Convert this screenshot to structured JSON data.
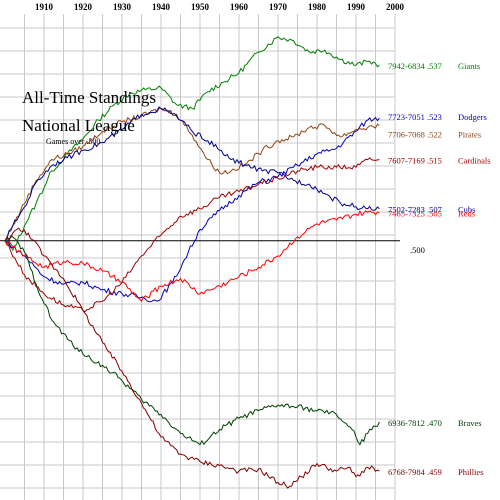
{
  "chart_data": {
    "type": "line",
    "title": "All-Time Standings",
    "subtitle": "National League",
    "note": "Games over .500",
    "baseline_label": ".500",
    "xlim": [
      1900,
      2000
    ],
    "ylim": [
      -660,
      590
    ],
    "x_ticks": [
      "1910",
      "1920",
      "1930",
      "1940",
      "1950",
      "1960",
      "1970",
      "1980",
      "1990",
      "2000"
    ],
    "x_tick_values": [
      1910,
      1920,
      1930,
      1940,
      1950,
      1960,
      1970,
      1980,
      1990,
      2000
    ],
    "grid": true,
    "series": [
      {
        "name": "Giants",
        "record": "7942-6834 .537",
        "color": "#008000",
        "points": [
          [
            1900,
            0
          ],
          [
            1902,
            -25
          ],
          [
            1905,
            40
          ],
          [
            1908,
            100
          ],
          [
            1912,
            185
          ],
          [
            1916,
            230
          ],
          [
            1920,
            270
          ],
          [
            1924,
            320
          ],
          [
            1928,
            360
          ],
          [
            1932,
            390
          ],
          [
            1936,
            400
          ],
          [
            1940,
            405
          ],
          [
            1944,
            360
          ],
          [
            1948,
            350
          ],
          [
            1952,
            395
          ],
          [
            1956,
            420
          ],
          [
            1960,
            445
          ],
          [
            1965,
            500
          ],
          [
            1970,
            540
          ],
          [
            1974,
            530
          ],
          [
            1978,
            500
          ],
          [
            1982,
            505
          ],
          [
            1986,
            480
          ],
          [
            1990,
            465
          ],
          [
            1993,
            475
          ],
          [
            1995,
            470
          ],
          [
            1996,
            465
          ]
        ]
      },
      {
        "name": "Dodgers",
        "record": "7723-7051 .523",
        "color": "#0000c0",
        "points": [
          [
            1900,
            0
          ],
          [
            1905,
            -40
          ],
          [
            1910,
            -95
          ],
          [
            1915,
            -115
          ],
          [
            1920,
            -110
          ],
          [
            1925,
            -130
          ],
          [
            1930,
            -140
          ],
          [
            1935,
            -150
          ],
          [
            1939,
            -160
          ],
          [
            1943,
            -110
          ],
          [
            1947,
            -30
          ],
          [
            1950,
            30
          ],
          [
            1955,
            80
          ],
          [
            1960,
            120
          ],
          [
            1965,
            155
          ],
          [
            1970,
            170
          ],
          [
            1975,
            200
          ],
          [
            1980,
            230
          ],
          [
            1985,
            245
          ],
          [
            1990,
            290
          ],
          [
            1993,
            320
          ],
          [
            1996,
            325
          ]
        ]
      },
      {
        "name": "Pirates",
        "record": "7706-7068 .522",
        "color": "#8b4513",
        "points": [
          [
            1900,
            0
          ],
          [
            1902,
            40
          ],
          [
            1904,
            80
          ],
          [
            1908,
            160
          ],
          [
            1912,
            215
          ],
          [
            1916,
            230
          ],
          [
            1920,
            250
          ],
          [
            1925,
            290
          ],
          [
            1930,
            315
          ],
          [
            1935,
            330
          ],
          [
            1940,
            350
          ],
          [
            1944,
            335
          ],
          [
            1948,
            280
          ],
          [
            1952,
            215
          ],
          [
            1955,
            180
          ],
          [
            1958,
            185
          ],
          [
            1962,
            205
          ],
          [
            1966,
            240
          ],
          [
            1970,
            265
          ],
          [
            1974,
            275
          ],
          [
            1978,
            300
          ],
          [
            1982,
            305
          ],
          [
            1986,
            275
          ],
          [
            1990,
            295
          ],
          [
            1993,
            300
          ],
          [
            1996,
            305
          ]
        ]
      },
      {
        "name": "Cardinals",
        "record": "7607-7169 .515",
        "color": "#a00000",
        "points": [
          [
            1900,
            0
          ],
          [
            1905,
            -90
          ],
          [
            1910,
            -140
          ],
          [
            1915,
            -170
          ],
          [
            1920,
            -185
          ],
          [
            1925,
            -160
          ],
          [
            1930,
            -110
          ],
          [
            1935,
            -40
          ],
          [
            1940,
            15
          ],
          [
            1945,
            65
          ],
          [
            1950,
            85
          ],
          [
            1955,
            115
          ],
          [
            1960,
            130
          ],
          [
            1965,
            150
          ],
          [
            1970,
            165
          ],
          [
            1975,
            185
          ],
          [
            1980,
            195
          ],
          [
            1985,
            195
          ],
          [
            1990,
            195
          ],
          [
            1993,
            215
          ],
          [
            1996,
            215
          ]
        ]
      },
      {
        "name": "Cubs",
        "record": "7502-7283 .507",
        "color": "#00008b",
        "points": [
          [
            1900,
            0
          ],
          [
            1902,
            40
          ],
          [
            1905,
            90
          ],
          [
            1908,
            155
          ],
          [
            1912,
            200
          ],
          [
            1916,
            220
          ],
          [
            1920,
            240
          ],
          [
            1925,
            260
          ],
          [
            1930,
            295
          ],
          [
            1935,
            335
          ],
          [
            1940,
            350
          ],
          [
            1944,
            330
          ],
          [
            1948,
            290
          ],
          [
            1952,
            265
          ],
          [
            1955,
            240
          ],
          [
            1958,
            215
          ],
          [
            1962,
            200
          ],
          [
            1966,
            185
          ],
          [
            1970,
            180
          ],
          [
            1974,
            160
          ],
          [
            1978,
            150
          ],
          [
            1982,
            125
          ],
          [
            1986,
            100
          ],
          [
            1990,
            90
          ],
          [
            1993,
            85
          ],
          [
            1996,
            85
          ]
        ]
      },
      {
        "name": "Reds",
        "record": "7465-7325 .505",
        "color": "#ff0000",
        "points": [
          [
            1900,
            0
          ],
          [
            1902,
            -15
          ],
          [
            1905,
            -40
          ],
          [
            1910,
            -70
          ],
          [
            1915,
            -55
          ],
          [
            1920,
            -60
          ],
          [
            1925,
            -80
          ],
          [
            1930,
            -110
          ],
          [
            1935,
            -160
          ],
          [
            1940,
            -120
          ],
          [
            1945,
            -100
          ],
          [
            1950,
            -140
          ],
          [
            1955,
            -120
          ],
          [
            1960,
            -95
          ],
          [
            1965,
            -70
          ],
          [
            1970,
            -40
          ],
          [
            1975,
            10
          ],
          [
            1980,
            45
          ],
          [
            1985,
            55
          ],
          [
            1990,
            70
          ],
          [
            1993,
            75
          ],
          [
            1996,
            75
          ]
        ]
      },
      {
        "name": "Braves",
        "record": "6936-7812 .470",
        "color": "#004000",
        "points": [
          [
            1900,
            0
          ],
          [
            1902,
            10
          ],
          [
            1905,
            -30
          ],
          [
            1908,
            -115
          ],
          [
            1912,
            -210
          ],
          [
            1916,
            -260
          ],
          [
            1920,
            -300
          ],
          [
            1925,
            -330
          ],
          [
            1930,
            -370
          ],
          [
            1935,
            -420
          ],
          [
            1940,
            -460
          ],
          [
            1945,
            -510
          ],
          [
            1950,
            -540
          ],
          [
            1955,
            -500
          ],
          [
            1960,
            -470
          ],
          [
            1965,
            -450
          ],
          [
            1970,
            -435
          ],
          [
            1975,
            -440
          ],
          [
            1980,
            -450
          ],
          [
            1985,
            -460
          ],
          [
            1989,
            -500
          ],
          [
            1991,
            -540
          ],
          [
            1993,
            -510
          ],
          [
            1996,
            -480
          ]
        ]
      },
      {
        "name": "Phillies",
        "record": "6768-7984 .459",
        "color": "#800000",
        "points": [
          [
            1900,
            0
          ],
          [
            1903,
            30
          ],
          [
            1906,
            20
          ],
          [
            1910,
            -40
          ],
          [
            1915,
            -100
          ],
          [
            1920,
            -185
          ],
          [
            1925,
            -270
          ],
          [
            1930,
            -345
          ],
          [
            1935,
            -430
          ],
          [
            1940,
            -520
          ],
          [
            1945,
            -565
          ],
          [
            1950,
            -585
          ],
          [
            1955,
            -595
          ],
          [
            1960,
            -610
          ],
          [
            1965,
            -605
          ],
          [
            1970,
            -640
          ],
          [
            1973,
            -650
          ],
          [
            1976,
            -625
          ],
          [
            1980,
            -590
          ],
          [
            1985,
            -610
          ],
          [
            1988,
            -600
          ],
          [
            1990,
            -625
          ],
          [
            1993,
            -600
          ],
          [
            1996,
            -610
          ]
        ]
      }
    ]
  }
}
